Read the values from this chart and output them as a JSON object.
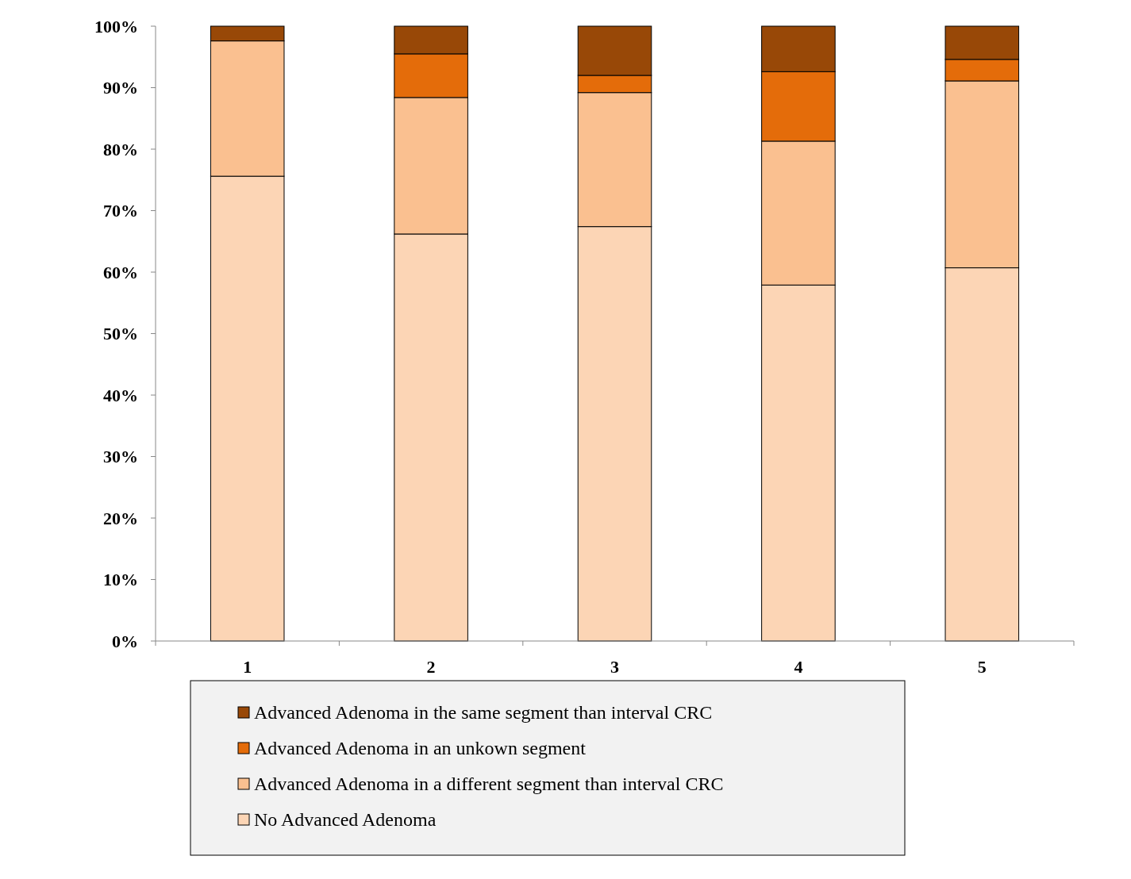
{
  "chart_data": {
    "type": "bar",
    "stacked": true,
    "categories": [
      "1",
      "2",
      "3",
      "4",
      "5"
    ],
    "series": [
      {
        "name": "No Advanced Adenoma",
        "color": "#fcd5b5",
        "values": [
          75.6,
          66.2,
          67.4,
          57.9,
          60.7
        ]
      },
      {
        "name": "Advanced Adenoma in a  different segment  than interval CRC",
        "color": "#fac090",
        "values": [
          22.0,
          22.2,
          21.8,
          23.4,
          30.4
        ]
      },
      {
        "name": "Advanced Adenoma in an unkown segment",
        "color": "#e46c0a",
        "values": [
          0,
          7.1,
          2.8,
          11.3,
          3.5
        ]
      },
      {
        "name": "Advanced Adenoma in the same segment than interval CRC",
        "color": "#984807",
        "values": [
          2.4,
          4.5,
          8.0,
          7.4,
          5.4
        ]
      }
    ],
    "ylim": [
      0,
      100
    ],
    "yticks": [
      {
        "value": 0,
        "label": "0%"
      },
      {
        "value": 10,
        "label": "10%"
      },
      {
        "value": 20,
        "label": "20%"
      },
      {
        "value": 30,
        "label": "30%"
      },
      {
        "value": 40,
        "label": "40%"
      },
      {
        "value": 50,
        "label": "50%"
      },
      {
        "value": 60,
        "label": "60%"
      },
      {
        "value": 70,
        "label": "70%"
      },
      {
        "value": 80,
        "label": "80%"
      },
      {
        "value": 90,
        "label": "90%"
      },
      {
        "value": 100,
        "label": "100%"
      }
    ],
    "legend": "bottom"
  }
}
